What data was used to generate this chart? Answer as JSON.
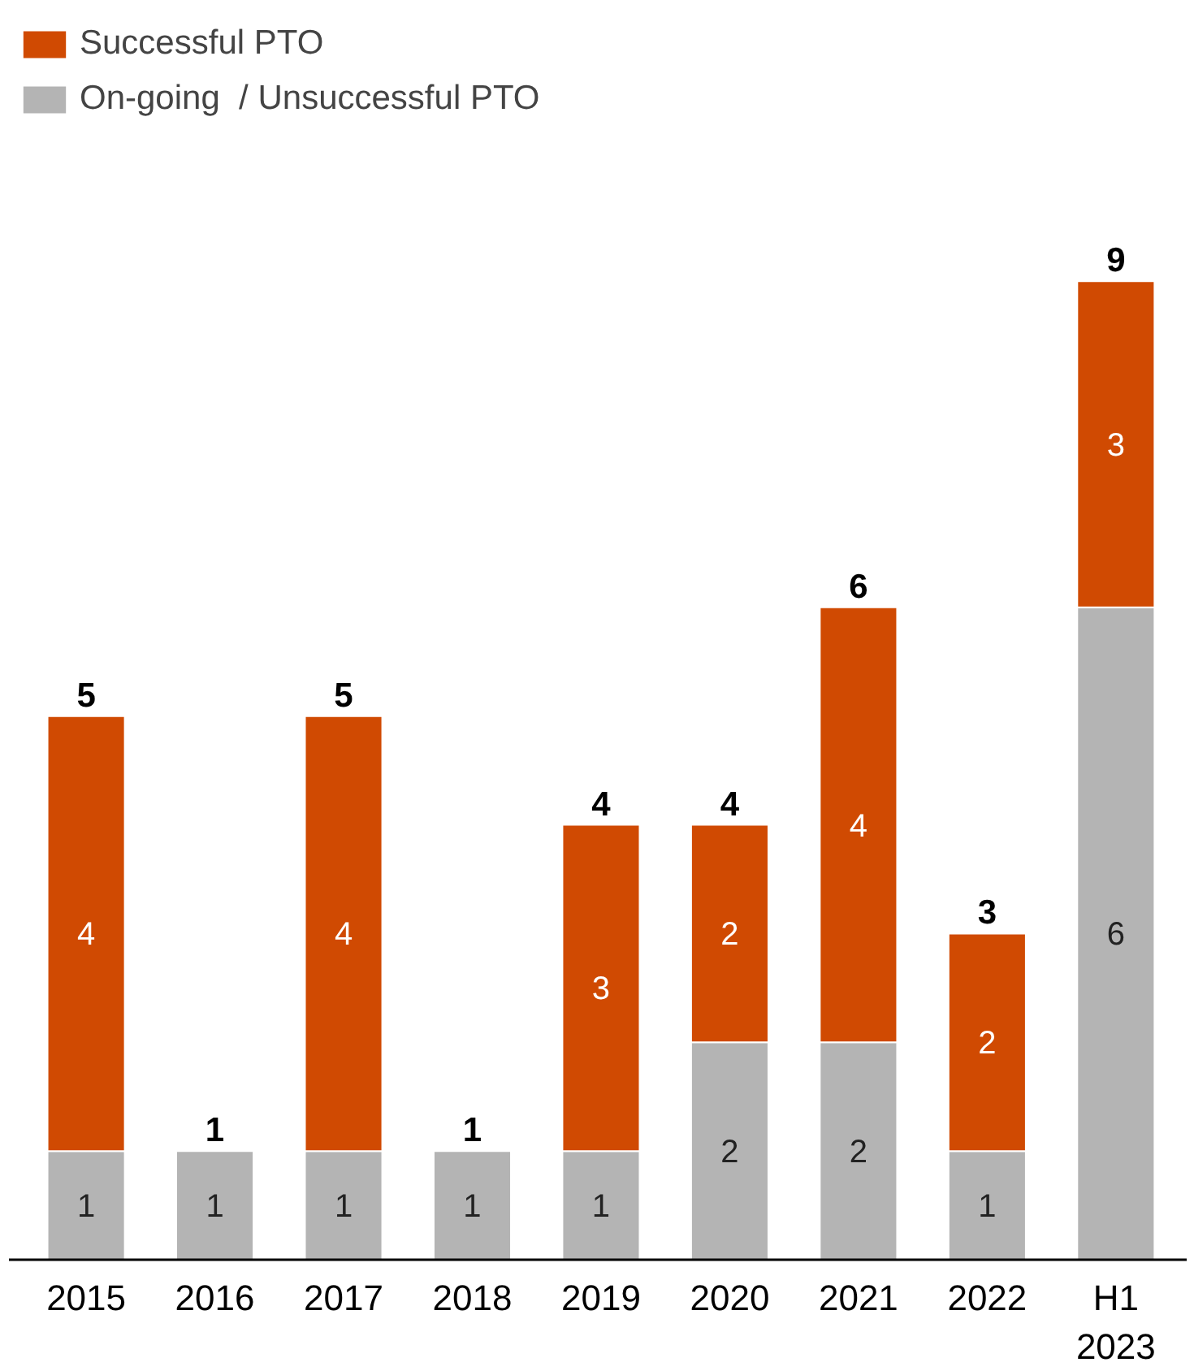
{
  "chart_data": {
    "type": "bar",
    "stacked": true,
    "categories": [
      "2015",
      "2016",
      "2017",
      "2018",
      "2019",
      "2020",
      "2021",
      "2022",
      "H1\n2023"
    ],
    "series": [
      {
        "name": "On-going  / Unsuccessful PTO",
        "color": "#b4b4b4",
        "values": [
          1,
          1,
          1,
          1,
          1,
          2,
          2,
          1,
          6
        ]
      },
      {
        "name": "Successful PTO",
        "color": "#d04a02",
        "values": [
          4,
          null,
          4,
          null,
          3,
          2,
          4,
          2,
          3
        ]
      }
    ],
    "data_labels": true,
    "totals": [
      "5",
      "1",
      "5",
      "1",
      "4",
      "4",
      "6",
      "3",
      "9"
    ],
    "legend": "top left",
    "grid": false
  }
}
